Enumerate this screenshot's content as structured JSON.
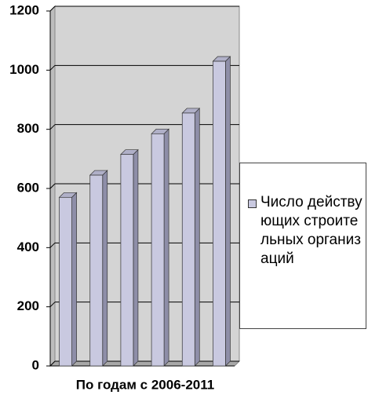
{
  "chart_data": {
    "type": "bar3d",
    "x_label": "По годам с 2006-2011",
    "categories": [
      null,
      null,
      null,
      null,
      null,
      null
    ],
    "series": [
      {
        "name": "Число действующих строительных организаций",
        "color": "#c9c9e0",
        "values": [
          570,
          645,
          715,
          785,
          855,
          1030
        ]
      }
    ],
    "ylim": [
      0,
      1200
    ],
    "yticks": [
      0,
      200,
      400,
      600,
      800,
      1000,
      1200
    ],
    "grid": true
  }
}
